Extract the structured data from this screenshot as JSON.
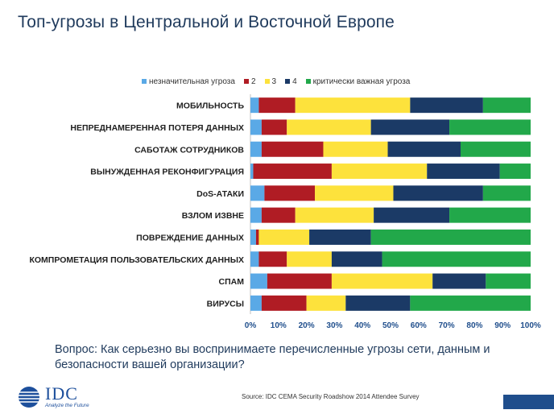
{
  "title": "Топ-угрозы в Центральной и Восточной Европе",
  "question": "Вопрос: Как серьезно вы воспринимаете перечисленные угрозы сети, данным и безопасности вашей организации?",
  "source": "Source: IDC CEMA Security Roadshow 2014 Attendee Survey",
  "logo": {
    "text": "IDC",
    "tagline": "Analyze the Future"
  },
  "chart_data": {
    "type": "bar",
    "orientation": "horizontal",
    "stacked": true,
    "categories": [
      "МОБИЛЬНОСТЬ",
      "НЕПРЕДНАМЕРЕННАЯ ПОТЕРЯ ДАННЫХ",
      "САБОТАЖ СОТРУДНИКОВ",
      "ВЫНУЖДЕННАЯ РЕКОНФИГУРАЦИЯ",
      "DoS-АТАКИ",
      "ВЗЛОМ ИЗВНЕ",
      "ПОВРЕЖДЕНИЕ ДАННЫХ",
      "КОМПРОМЕТАЦИЯ ПОЛЬЗОВАТЕЛЬСКИХ ДАННЫХ",
      "СПАМ",
      "ВИРУСЫ"
    ],
    "series": [
      {
        "name": "незначительная угроза",
        "color": "#5aa9e6",
        "values": [
          3,
          4,
          4,
          1,
          5,
          4,
          2,
          3,
          6,
          4
        ]
      },
      {
        "name": "2",
        "color": "#b01c24",
        "values": [
          13,
          9,
          22,
          28,
          18,
          12,
          1,
          10,
          23,
          16
        ]
      },
      {
        "name": "3",
        "color": "#fde23c",
        "values": [
          41,
          30,
          23,
          34,
          28,
          28,
          18,
          16,
          36,
          14
        ]
      },
      {
        "name": "4",
        "color": "#1b3a66",
        "values": [
          26,
          28,
          26,
          26,
          32,
          27,
          22,
          18,
          19,
          23
        ]
      },
      {
        "name": "критически важная угроза",
        "color": "#22a84a",
        "values": [
          17,
          29,
          25,
          11,
          17,
          29,
          57,
          53,
          16,
          43
        ]
      }
    ],
    "xlim": [
      0,
      100
    ],
    "xticks": [
      "0%",
      "10%",
      "20%",
      "30%",
      "40%",
      "50%",
      "60%",
      "70%",
      "80%",
      "90%",
      "100%"
    ],
    "legend_position": "top",
    "grid": false
  }
}
